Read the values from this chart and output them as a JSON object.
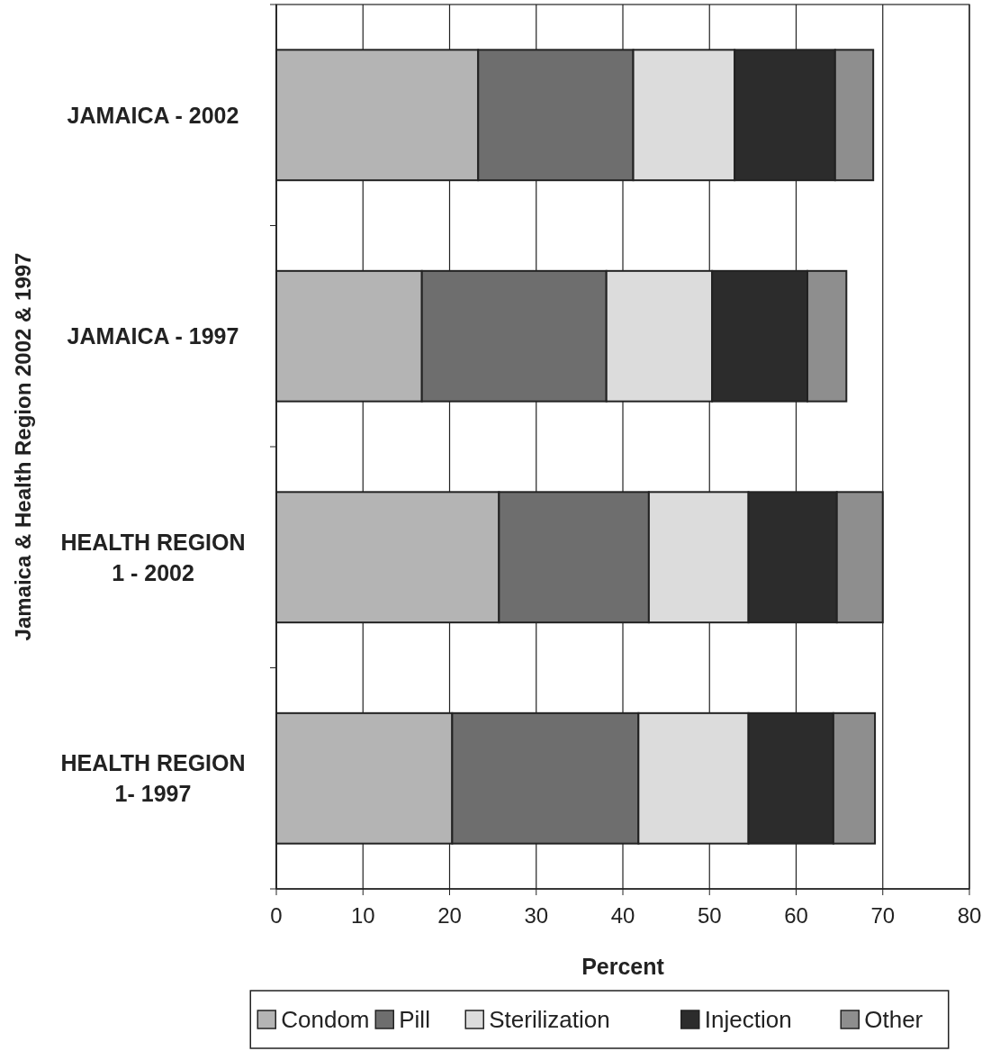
{
  "chart_data": {
    "type": "bar",
    "orientation": "horizontal",
    "stacked": true,
    "xlabel": "Percent",
    "ylabel": "Jamaica & Health Region 2002 & 1997",
    "categories": [
      "JAMAICA - 2002",
      "JAMAICA - 1997",
      "HEALTH REGION 1 - 2002",
      "HEALTH REGION 1- 1997"
    ],
    "series": [
      {
        "name": "Condom",
        "color": "#b4b4b4",
        "values": [
          23.3,
          16.8,
          25.7,
          20.3
        ]
      },
      {
        "name": "Pill",
        "color": "#6e6e6e",
        "values": [
          17.9,
          21.3,
          17.3,
          21.5
        ]
      },
      {
        "name": "Sterilization",
        "color": "#dcdcdc",
        "values": [
          11.7,
          12.2,
          11.5,
          12.7
        ]
      },
      {
        "name": "Injection",
        "color": "#2c2c2c",
        "values": [
          11.6,
          11.0,
          10.2,
          9.8
        ]
      },
      {
        "name": "Other",
        "color": "#8e8e8e",
        "values": [
          4.4,
          4.5,
          5.3,
          4.8
        ]
      }
    ],
    "xlim": [
      0,
      80
    ],
    "xticks": [
      0,
      10,
      20,
      30,
      40,
      50,
      60,
      70,
      80
    ],
    "grid": "x",
    "legend": "bottom"
  }
}
